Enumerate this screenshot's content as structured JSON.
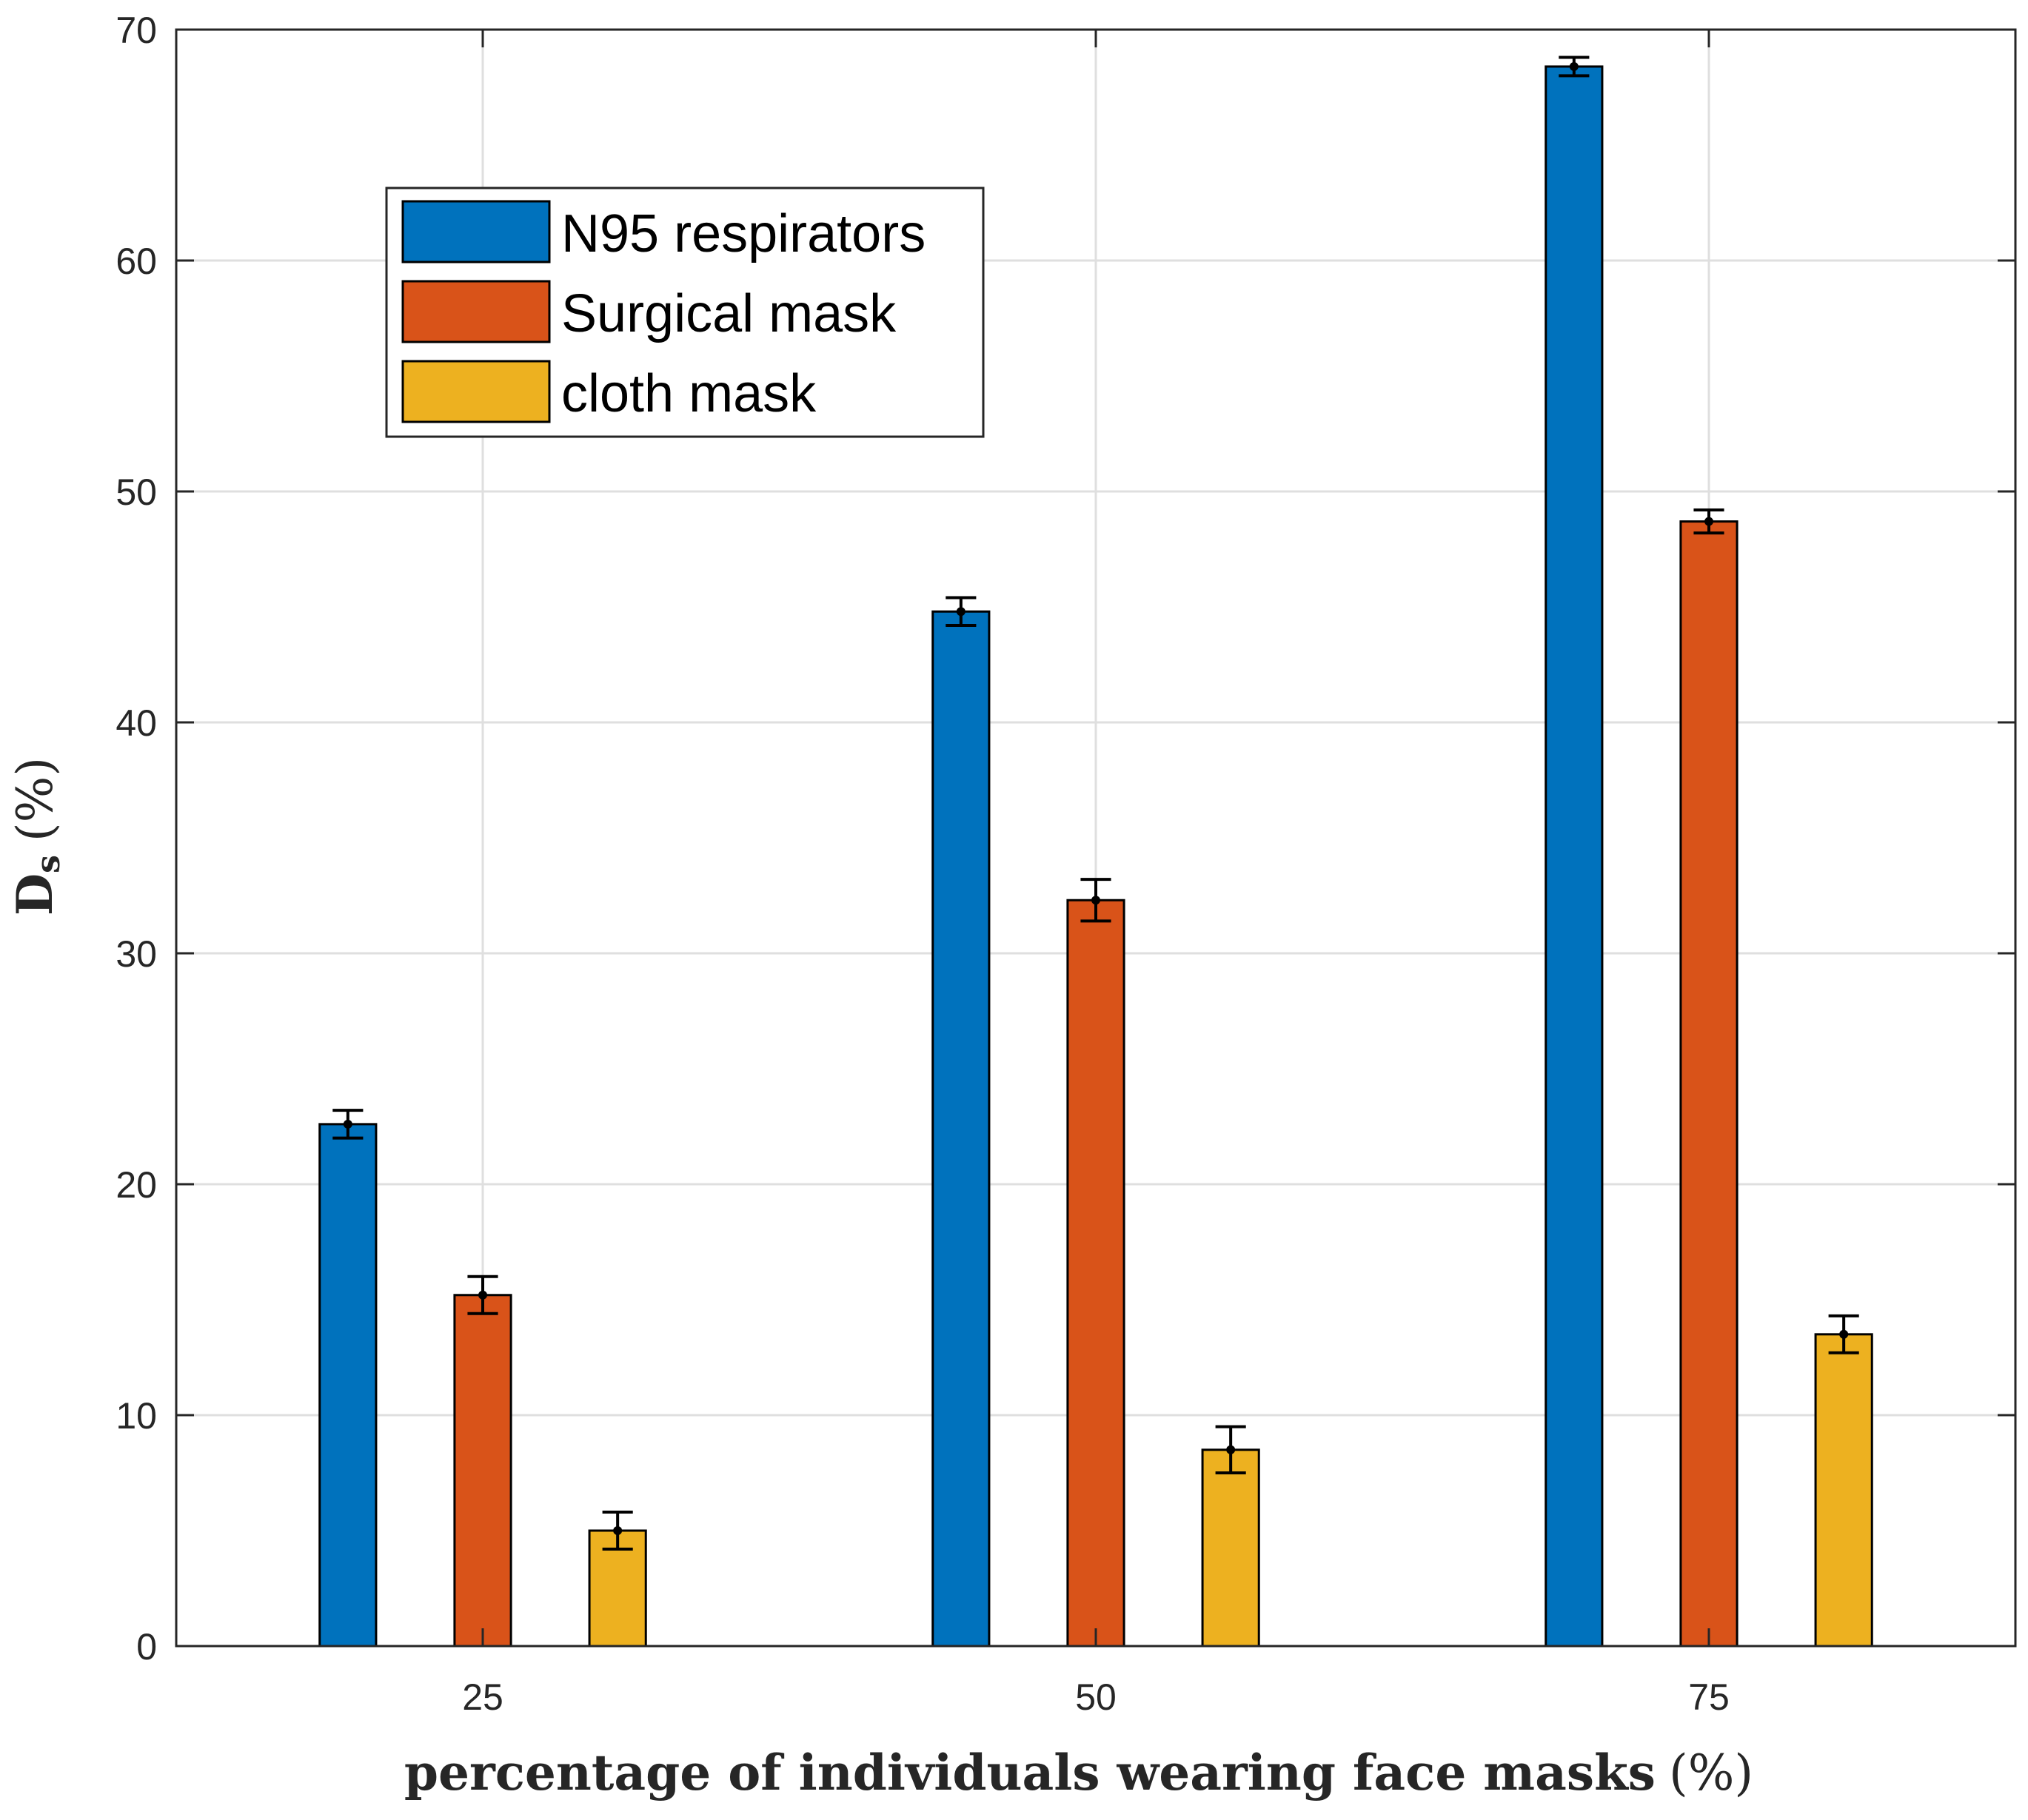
{
  "chart_data": {
    "type": "bar",
    "title": "",
    "categories": [
      "25",
      "50",
      "75"
    ],
    "series": [
      {
        "name": "N95 respirators",
        "color": "#0072BD",
        "values": [
          22.6,
          44.8,
          68.4
        ],
        "errors": [
          0.6,
          0.6,
          0.4
        ]
      },
      {
        "name": "Surgical mask",
        "color": "#D95319",
        "values": [
          15.2,
          32.3,
          48.7
        ],
        "errors": [
          0.8,
          0.9,
          0.5
        ]
      },
      {
        "name": "cloth mask",
        "color": "#EDB120",
        "values": [
          5.0,
          8.5,
          13.5
        ],
        "errors": [
          0.8,
          1.0,
          0.8
        ]
      }
    ],
    "xlabel": "percentage of individuals wearing face masks",
    "xlabel_unit": "(%)",
    "ylabel": "D",
    "ylabel_sub": "s",
    "ylabel_unit": "(%)",
    "ylim": [
      0,
      70
    ],
    "yticks": [
      0,
      10,
      20,
      30,
      40,
      50,
      60,
      70
    ],
    "grid": true,
    "legend_position": "top-left"
  }
}
